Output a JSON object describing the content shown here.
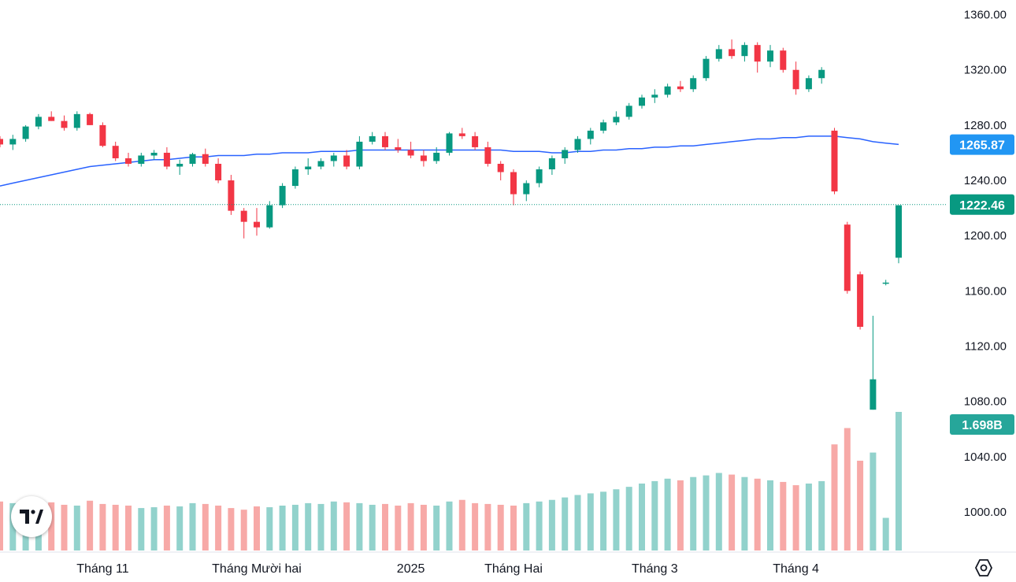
{
  "chart_data": {
    "type": "candlestick",
    "price_axis": {
      "ticks": [
        "1360.00",
        "1320.00",
        "1280.00",
        "1240.00",
        "1200.00",
        "1160.00",
        "1120.00",
        "1080.00",
        "1040.00",
        "1000.00"
      ],
      "tick_values": [
        1360,
        1320,
        1280,
        1240,
        1200,
        1160,
        1120,
        1080,
        1040,
        1000
      ]
    },
    "time_axis": {
      "labels": [
        "Tháng 11",
        "Tháng Mười hai",
        "2025",
        "Tháng Hai",
        "Tháng 3",
        "Tháng 4"
      ],
      "label_bar_index": [
        8,
        20,
        32,
        40,
        51,
        62
      ]
    },
    "last_price": "1222.46",
    "moving_average_last": "1265.87",
    "volume_last": "1.698B",
    "candles": [
      [
        1270,
        1272,
        1264,
        1266
      ],
      [
        1266,
        1273,
        1262,
        1270
      ],
      [
        1270,
        1280,
        1268,
        1279
      ],
      [
        1279,
        1288,
        1277,
        1286
      ],
      [
        1286,
        1290,
        1283,
        1283
      ],
      [
        1283,
        1287,
        1276,
        1278
      ],
      [
        1278,
        1290,
        1276,
        1288
      ],
      [
        1288,
        1289,
        1280,
        1280
      ],
      [
        1280,
        1282,
        1264,
        1265
      ],
      [
        1265,
        1268,
        1254,
        1256
      ],
      [
        1256,
        1260,
        1250,
        1252
      ],
      [
        1252,
        1260,
        1250,
        1258
      ],
      [
        1258,
        1262,
        1255,
        1260
      ],
      [
        1260,
        1264,
        1248,
        1250
      ],
      [
        1250,
        1255,
        1244,
        1252
      ],
      [
        1252,
        1260,
        1250,
        1259
      ],
      [
        1259,
        1263,
        1250,
        1252
      ],
      [
        1252,
        1256,
        1238,
        1240
      ],
      [
        1240,
        1244,
        1215,
        1218
      ],
      [
        1218,
        1220,
        1198,
        1210
      ],
      [
        1210,
        1220,
        1200,
        1206
      ],
      [
        1206,
        1225,
        1205,
        1222
      ],
      [
        1222,
        1238,
        1220,
        1236
      ],
      [
        1236,
        1250,
        1234,
        1248
      ],
      [
        1248,
        1256,
        1244,
        1250
      ],
      [
        1250,
        1256,
        1248,
        1254
      ],
      [
        1254,
        1260,
        1250,
        1258
      ],
      [
        1258,
        1262,
        1248,
        1250
      ],
      [
        1250,
        1272,
        1248,
        1268
      ],
      [
        1268,
        1275,
        1266,
        1272
      ],
      [
        1272,
        1275,
        1262,
        1264
      ],
      [
        1264,
        1270,
        1260,
        1262
      ],
      [
        1262,
        1268,
        1256,
        1258
      ],
      [
        1258,
        1262,
        1250,
        1254
      ],
      [
        1254,
        1264,
        1252,
        1260
      ],
      [
        1260,
        1275,
        1258,
        1274
      ],
      [
        1274,
        1278,
        1270,
        1272
      ],
      [
        1272,
        1275,
        1262,
        1264
      ],
      [
        1264,
        1268,
        1250,
        1252
      ],
      [
        1252,
        1254,
        1240,
        1246
      ],
      [
        1246,
        1248,
        1222,
        1230
      ],
      [
        1230,
        1240,
        1225,
        1238
      ],
      [
        1238,
        1250,
        1235,
        1248
      ],
      [
        1248,
        1258,
        1244,
        1256
      ],
      [
        1256,
        1264,
        1252,
        1262
      ],
      [
        1262,
        1272,
        1260,
        1270
      ],
      [
        1270,
        1278,
        1266,
        1276
      ],
      [
        1276,
        1284,
        1274,
        1282
      ],
      [
        1282,
        1290,
        1280,
        1286
      ],
      [
        1286,
        1296,
        1284,
        1294
      ],
      [
        1294,
        1302,
        1292,
        1300
      ],
      [
        1300,
        1306,
        1296,
        1302
      ],
      [
        1302,
        1310,
        1300,
        1308
      ],
      [
        1308,
        1312,
        1304,
        1306
      ],
      [
        1306,
        1316,
        1304,
        1314
      ],
      [
        1314,
        1330,
        1312,
        1328
      ],
      [
        1328,
        1338,
        1326,
        1335
      ],
      [
        1335,
        1342,
        1328,
        1330
      ],
      [
        1330,
        1340,
        1326,
        1338
      ],
      [
        1338,
        1340,
        1318,
        1326
      ],
      [
        1326,
        1338,
        1322,
        1334
      ],
      [
        1334,
        1336,
        1318,
        1320
      ],
      [
        1320,
        1326,
        1302,
        1306
      ],
      [
        1306,
        1316,
        1304,
        1314
      ],
      [
        1314,
        1322,
        1310,
        1320
      ],
      [
        1276,
        1278,
        1230,
        1232
      ],
      [
        1208,
        1210,
        1158,
        1160
      ],
      [
        1172,
        1174,
        1132,
        1134
      ],
      [
        1074,
        1142,
        1074,
        1096
      ],
      [
        1166,
        1168,
        1164,
        1166
      ],
      [
        1184,
        1222,
        1180,
        1222
      ]
    ],
    "volume": [
      0.6,
      0.58,
      0.62,
      0.6,
      0.59,
      0.56,
      0.55,
      0.61,
      0.57,
      0.56,
      0.55,
      0.52,
      0.53,
      0.55,
      0.54,
      0.58,
      0.57,
      0.55,
      0.52,
      0.5,
      0.54,
      0.53,
      0.55,
      0.56,
      0.58,
      0.57,
      0.6,
      0.59,
      0.58,
      0.56,
      0.57,
      0.55,
      0.58,
      0.56,
      0.55,
      0.6,
      0.62,
      0.58,
      0.57,
      0.56,
      0.55,
      0.58,
      0.6,
      0.62,
      0.65,
      0.68,
      0.7,
      0.72,
      0.75,
      0.78,
      0.82,
      0.85,
      0.88,
      0.86,
      0.9,
      0.92,
      0.95,
      0.93,
      0.9,
      0.88,
      0.86,
      0.84,
      0.8,
      0.82,
      0.85,
      1.3,
      1.5,
      1.1,
      1.2,
      0.4,
      1.698
    ],
    "ma_line": [
      1236,
      1238,
      1240,
      1242,
      1244,
      1246,
      1248,
      1250,
      1251,
      1252,
      1253,
      1254,
      1255,
      1255,
      1256,
      1257,
      1257,
      1258,
      1258,
      1258,
      1259,
      1259,
      1260,
      1260,
      1260,
      1261,
      1261,
      1261,
      1262,
      1262,
      1262,
      1262,
      1262,
      1262,
      1262,
      1262,
      1262,
      1262,
      1262,
      1262,
      1261,
      1261,
      1261,
      1260,
      1260,
      1261,
      1261,
      1262,
      1262,
      1263,
      1263,
      1264,
      1264,
      1265,
      1265,
      1266,
      1267,
      1268,
      1269,
      1270,
      1270,
      1271,
      1271,
      1272,
      1272,
      1272,
      1271,
      1270,
      1268,
      1267,
      1266
    ],
    "colors": {
      "up": "#089981",
      "down": "#f23645",
      "up_volume": "#92d2cc",
      "down_volume": "#f7a9a7",
      "ma": "#2962ff",
      "price_tag": "#2196f3"
    }
  }
}
